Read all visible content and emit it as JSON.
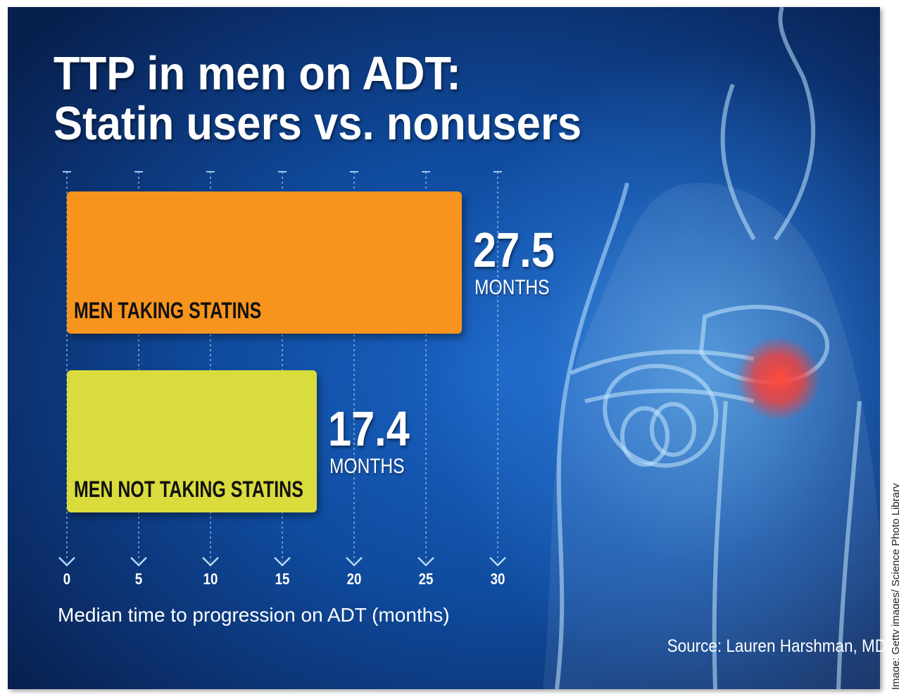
{
  "title_lines": [
    "TTP in men on ADT:",
    "Statin users vs. nonusers"
  ],
  "chart_data": {
    "type": "bar",
    "orientation": "horizontal",
    "categories": [
      "MEN TAKING STATINS",
      "MEN NOT TAKING STATINS"
    ],
    "values": [
      27.5,
      17.4
    ],
    "value_labels": [
      "27.5",
      "17.4"
    ],
    "unit_label": "MONTHS",
    "xlabel": "Median time to progression on ADT (months)",
    "xticks": [
      0,
      5,
      10,
      15,
      20,
      25,
      30
    ],
    "xlim": [
      0,
      30
    ],
    "bar_colors": [
      "#f7941d",
      "#d9dc3c"
    ],
    "grid": true
  },
  "source": "Source: Lauren Harshman, MD",
  "image_credit": "Image: Getty images/ Science Photo Library",
  "colors": {
    "background": "#0f4b9e",
    "text": "#ffffff"
  }
}
